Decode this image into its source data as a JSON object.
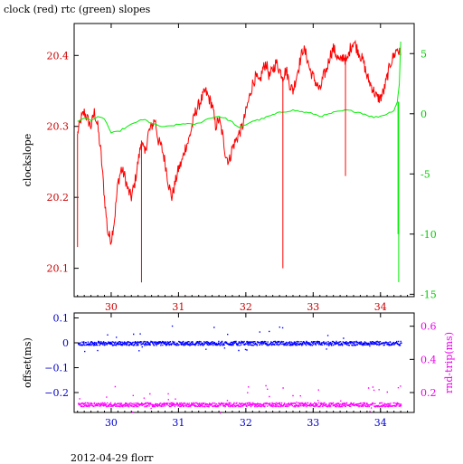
{
  "page": {
    "title": "clock (red) rtc (green) slopes",
    "footer": "2012-04-29 florr"
  },
  "chart_data": [
    {
      "type": "line",
      "ylabel": "clockslope",
      "y2label": "",
      "xlim": [
        29.45,
        34.5
      ],
      "ylim": [
        20.06,
        20.445
      ],
      "y2lim": [
        -15.2,
        7.5
      ],
      "x_ticks": [
        30,
        31,
        32,
        33,
        34
      ],
      "y_ticks": [
        20.1,
        20.2,
        20.3,
        20.4
      ],
      "y2_ticks": [
        5,
        0,
        -5,
        -10,
        -15
      ],
      "colors": {
        "axis_left": "#cc0000",
        "axis_right": "#00cc00",
        "x_tick_labels": "#cc0000",
        "frame": "#000000"
      },
      "series": [
        {
          "color": "#ff0000",
          "axis": "left",
          "x": [
            29.5,
            29.55,
            29.6,
            29.65,
            29.7,
            29.75,
            29.8,
            29.85,
            29.9,
            29.95,
            30.0,
            30.05,
            30.1,
            30.15,
            30.2,
            30.25,
            30.3,
            30.35,
            30.4,
            30.45,
            30.5,
            30.55,
            30.6,
            30.65,
            30.7,
            30.75,
            30.8,
            30.85,
            30.9,
            30.95,
            31.0,
            31.05,
            31.1,
            31.15,
            31.2,
            31.25,
            31.3,
            31.35,
            31.4,
            31.45,
            31.5,
            31.55,
            31.6,
            31.65,
            31.7,
            31.75,
            31.8,
            31.85,
            31.9,
            31.95,
            32.0,
            32.05,
            32.1,
            32.15,
            32.2,
            32.25,
            32.3,
            32.35,
            32.4,
            32.45,
            32.5,
            32.55,
            32.6,
            32.65,
            32.7,
            32.75,
            32.8,
            32.85,
            32.9,
            32.95,
            33.0,
            33.05,
            33.1,
            33.15,
            33.2,
            33.25,
            33.3,
            33.35,
            33.4,
            33.45,
            33.5,
            33.55,
            33.6,
            33.65,
            33.7,
            33.75,
            33.8,
            33.85,
            33.9,
            33.95,
            34.0,
            34.05,
            34.1,
            34.15,
            34.2,
            34.25,
            34.3
          ],
          "y": [
            20.29,
            20.31,
            20.32,
            20.31,
            20.3,
            20.32,
            20.3,
            20.26,
            20.2,
            20.15,
            20.14,
            20.17,
            20.22,
            20.24,
            20.23,
            20.21,
            20.2,
            20.22,
            20.25,
            20.28,
            20.26,
            20.29,
            20.3,
            20.31,
            20.28,
            20.27,
            20.25,
            20.22,
            20.2,
            20.22,
            20.24,
            20.25,
            20.27,
            20.28,
            20.3,
            20.32,
            20.33,
            20.34,
            20.35,
            20.34,
            20.33,
            20.3,
            20.31,
            20.29,
            20.26,
            20.25,
            20.27,
            20.28,
            20.29,
            20.3,
            20.32,
            20.34,
            20.36,
            20.37,
            20.36,
            20.38,
            20.39,
            20.37,
            20.38,
            20.39,
            20.38,
            20.37,
            20.38,
            20.36,
            20.35,
            20.37,
            20.39,
            20.41,
            20.4,
            20.38,
            20.37,
            20.36,
            20.35,
            20.37,
            20.38,
            20.4,
            20.41,
            20.4,
            20.39,
            20.4,
            20.39,
            20.41,
            20.42,
            20.41,
            20.4,
            20.39,
            20.37,
            20.36,
            20.35,
            20.34,
            20.34,
            20.35,
            20.37,
            20.39,
            20.4,
            20.41,
            20.4
          ]
        },
        {
          "color": "#00ee00",
          "axis": "right",
          "x": [
            29.5,
            29.6,
            29.7,
            29.8,
            29.9,
            30.0,
            30.1,
            30.2,
            30.3,
            30.4,
            30.5,
            30.6,
            30.7,
            30.8,
            30.9,
            31.0,
            31.1,
            31.2,
            31.3,
            31.4,
            31.5,
            31.6,
            31.7,
            31.8,
            31.9,
            32.0,
            32.1,
            32.2,
            32.3,
            32.4,
            32.5,
            32.6,
            32.7,
            32.8,
            32.9,
            33.0,
            33.1,
            33.2,
            33.3,
            33.4,
            33.5,
            33.6,
            33.7,
            33.8,
            33.9,
            34.0,
            34.1,
            34.2,
            34.25,
            34.28,
            34.3
          ],
          "y": [
            -0.6,
            -0.4,
            -0.5,
            -0.3,
            -0.4,
            -1.6,
            -1.5,
            -1.2,
            -0.9,
            -0.6,
            -0.5,
            -0.8,
            -1.0,
            -1.1,
            -1.0,
            -0.9,
            -0.8,
            -0.9,
            -0.8,
            -0.5,
            -0.3,
            -0.2,
            -0.4,
            -0.7,
            -1.2,
            -0.9,
            -0.6,
            -0.5,
            -0.3,
            -0.1,
            0.1,
            0.2,
            0.3,
            0.2,
            0.1,
            0.0,
            -0.2,
            -0.1,
            0.1,
            0.2,
            0.3,
            0.2,
            0.1,
            -0.1,
            -0.3,
            -0.2,
            0.0,
            0.3,
            1.0,
            2.5,
            6.0
          ]
        }
      ],
      "spikes": [
        {
          "series": 0,
          "x": 29.5,
          "y": 20.13
        },
        {
          "series": 0,
          "x": 30.45,
          "y": 20.08
        },
        {
          "series": 0,
          "x": 32.55,
          "y": 20.1
        },
        {
          "series": 0,
          "x": 33.48,
          "y": 20.23
        },
        {
          "series": 1,
          "x": 34.27,
          "y": -14.0
        },
        {
          "series": 1,
          "x": 34.26,
          "y": -10.0
        }
      ]
    },
    {
      "type": "scatter",
      "ylabel": "offset(ms)",
      "y2label": "rnd-trip(ms)",
      "xlim": [
        29.45,
        34.5
      ],
      "ylim": [
        -0.28,
        0.12
      ],
      "y2lim": [
        0.08,
        0.68
      ],
      "x_ticks": [
        30,
        31,
        32,
        33,
        34
      ],
      "y_ticks": [
        0.1,
        0,
        -0.1,
        -0.2
      ],
      "y_tick_labels": [
        "0.1",
        "0",
        "−0.1",
        "−0.2"
      ],
      "y2_ticks": [
        0.6,
        0.4,
        0.2
      ],
      "colors": {
        "axis_left": "#0000cc",
        "axis_right": "#ee00ee",
        "x_tick_labels": "#0000cc",
        "frame": "#000000"
      },
      "series": [
        {
          "color": "#0000ff",
          "axis": "left",
          "x_range": [
            29.5,
            34.3
          ],
          "y_center": 0.0,
          "y_spread": 0.008
        },
        {
          "color": "#ff00ff",
          "axis": "right",
          "x_range": [
            29.5,
            34.3
          ],
          "y_center": 0.13,
          "y_spread": 0.012
        }
      ]
    }
  ]
}
